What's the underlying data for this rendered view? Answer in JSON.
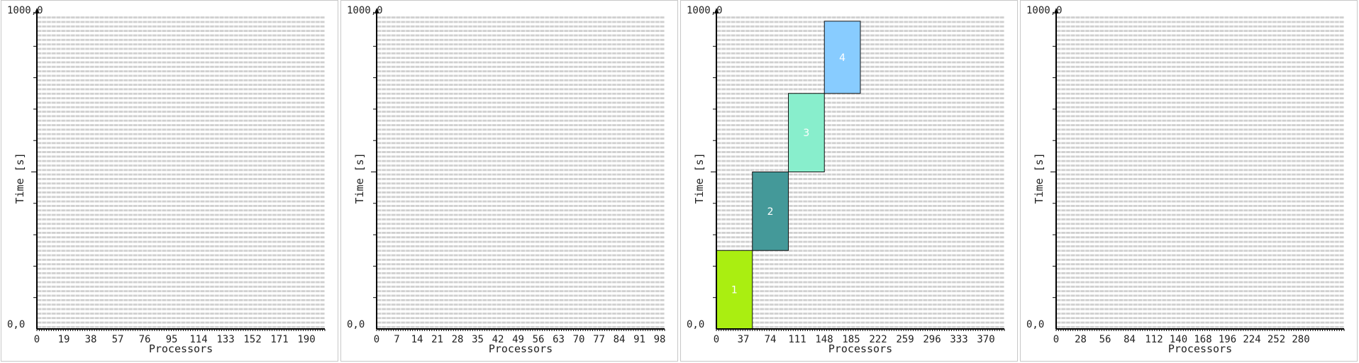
{
  "chart_data": [
    {
      "type": "bar",
      "x_ticks": [
        "0",
        "19",
        "38",
        "57",
        "76",
        "95",
        "114",
        "133",
        "152",
        "171",
        "190"
      ],
      "xmax": 200,
      "xlabel": "Processors",
      "ylabel": "Time [s]",
      "y_top_label": "1000,0",
      "y_bottom_label": "0,0",
      "ylim": [
        0,
        1000
      ],
      "grid": true,
      "jobs": []
    },
    {
      "type": "bar",
      "x_ticks": [
        "0",
        "7",
        "14",
        "21",
        "28",
        "35",
        "42",
        "49",
        "56",
        "63",
        "70",
        "77",
        "84",
        "91",
        "98"
      ],
      "xmax": 100,
      "xlabel": "Processors",
      "ylabel": "Time [s]",
      "y_top_label": "1000,0",
      "y_bottom_label": "0,0",
      "ylim": [
        0,
        1000
      ],
      "grid": true,
      "jobs": []
    },
    {
      "type": "bar",
      "x_ticks": [
        "0",
        "37",
        "74",
        "111",
        "148",
        "185",
        "222",
        "259",
        "296",
        "333",
        "370"
      ],
      "xmax": 400,
      "xlabel": "Processors",
      "ylabel": "Time [s]",
      "y_top_label": "1000,0",
      "y_bottom_label": "0,0",
      "ylim": [
        0,
        1000
      ],
      "grid": true,
      "jobs": [
        {
          "id": "1",
          "proc_start": 0,
          "proc_end": 50,
          "t_start": 0,
          "t_end": 250,
          "color": "#aaee11"
        },
        {
          "id": "2",
          "proc_start": 50,
          "proc_end": 100,
          "t_start": 250,
          "t_end": 500,
          "color": "#449999"
        },
        {
          "id": "3",
          "proc_start": 100,
          "proc_end": 150,
          "t_start": 500,
          "t_end": 750,
          "color": "#88eecc"
        },
        {
          "id": "4",
          "proc_start": 150,
          "proc_end": 200,
          "t_start": 750,
          "t_end": 980,
          "color": "#88ccff"
        }
      ]
    },
    {
      "type": "bar",
      "x_ticks": [
        "0",
        "28",
        "56",
        "84",
        "112",
        "140",
        "168",
        "196",
        "224",
        "252",
        "280"
      ],
      "xmax": 300,
      "xlabel": "Processors",
      "ylabel": "Time [s]",
      "y_top_label": "1000,0",
      "y_bottom_label": "0,0",
      "ylim": [
        0,
        1000
      ],
      "grid": true,
      "jobs": []
    }
  ]
}
